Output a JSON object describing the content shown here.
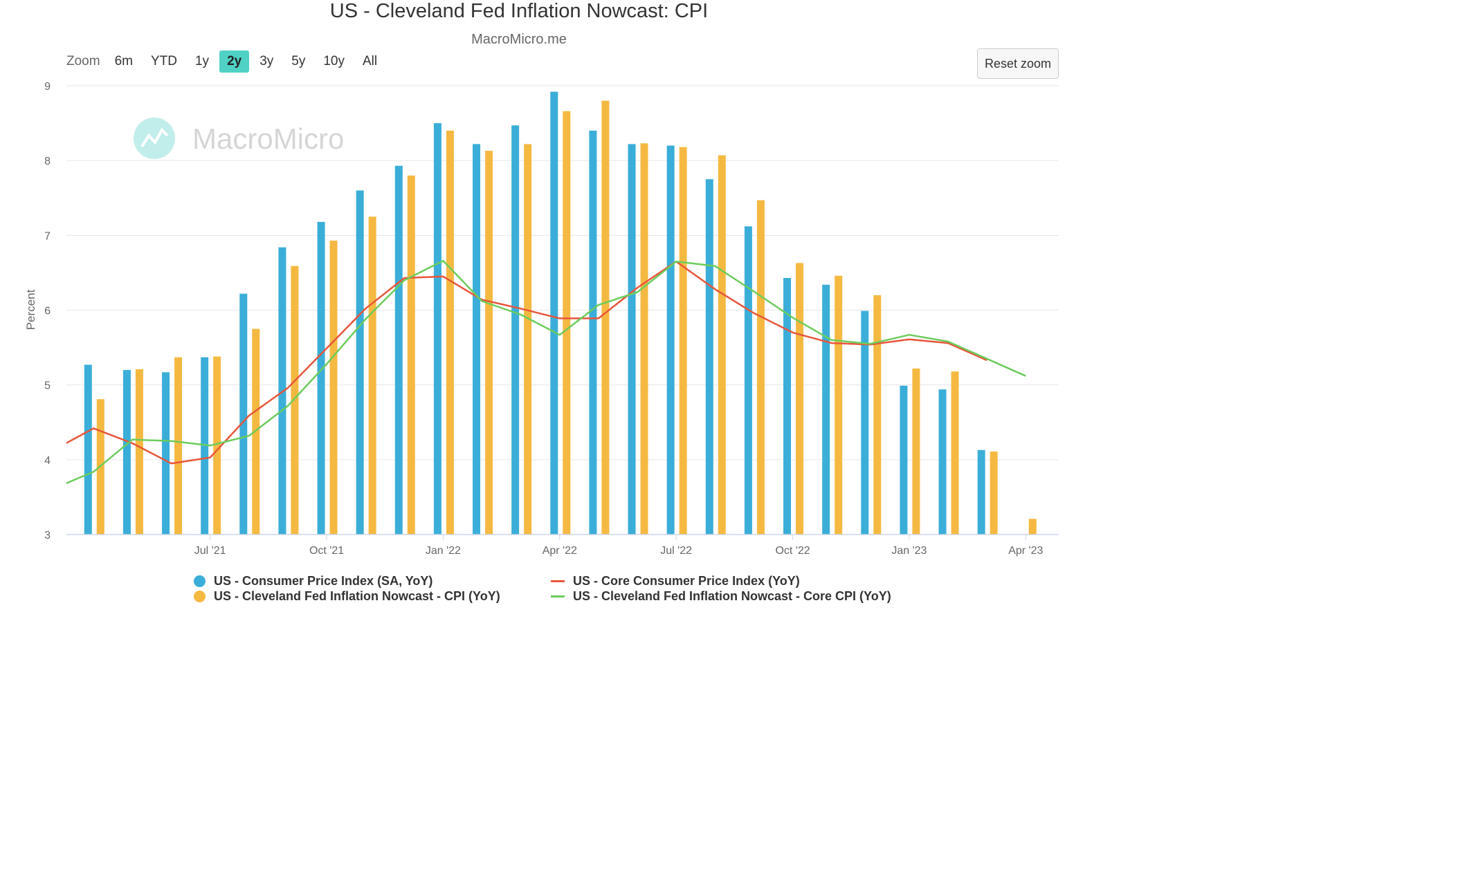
{
  "header": {
    "title": "US - Cleveland Fed Inflation Nowcast: CPI",
    "subtitle": "MacroMicro.me",
    "watermark": "MacroMicro"
  },
  "toolbar": {
    "zoom_label": "Zoom",
    "zoom_options": [
      "6m",
      "YTD",
      "1y",
      "2y",
      "3y",
      "5y",
      "10y",
      "All"
    ],
    "active_zoom": "2y",
    "reset_label": "Reset zoom"
  },
  "colors": {
    "cpi": "#3aaed8",
    "nowcast_cpi": "#f5b942",
    "core_cpi": "#e8553a",
    "nowcast_core": "#6ccc5c",
    "accent": "#4fd1c5"
  },
  "chart_data": {
    "type": "bar",
    "ylabel": "Percent",
    "ylim": [
      3,
      9
    ],
    "yticks": [
      "3",
      "4",
      "5",
      "6",
      "7",
      "8",
      "9"
    ],
    "x_tick_labels": [
      "Jul '21",
      "Oct '21",
      "Jan '22",
      "Apr '22",
      "Jul '22",
      "Oct '22",
      "Jan '23",
      "Apr '23"
    ],
    "x_tick_months": [
      5,
      8,
      11,
      14,
      17,
      20,
      23,
      26
    ],
    "months": [
      "2021-02",
      "2021-03",
      "2021-04",
      "2021-05",
      "2021-06",
      "2021-07",
      "2021-08",
      "2021-09",
      "2021-10",
      "2021-11",
      "2021-12",
      "2022-01",
      "2022-02",
      "2022-03",
      "2022-04",
      "2022-05",
      "2022-06",
      "2022-07",
      "2022-08",
      "2022-09",
      "2022-10",
      "2022-11",
      "2022-12",
      "2023-01",
      "2023-02",
      "2023-03",
      "2023-04",
      "2023-05",
      "2023-06"
    ],
    "grid": true,
    "legend_position": "bottom",
    "series": [
      {
        "name": "US - Consumer Price Index (SA, YoY)",
        "kind": "bar",
        "color": "#3aaed8",
        "values": [
          null,
          null,
          5.27,
          5.2,
          5.17,
          5.37,
          6.22,
          6.84,
          7.18,
          7.6,
          7.93,
          8.5,
          8.22,
          8.47,
          8.92,
          8.4,
          8.22,
          8.2,
          7.75,
          7.12,
          6.43,
          6.34,
          5.99,
          4.99,
          4.94,
          4.13,
          null,
          null,
          null
        ]
      },
      {
        "name": "US - Cleveland Fed Inflation Nowcast - CPI (YoY)",
        "kind": "bar",
        "color": "#f5b942",
        "values": [
          null,
          null,
          4.81,
          5.21,
          5.37,
          5.38,
          5.75,
          6.59,
          6.93,
          7.25,
          7.8,
          8.4,
          8.13,
          8.22,
          8.66,
          8.8,
          8.23,
          8.18,
          8.07,
          7.47,
          6.63,
          6.46,
          6.2,
          5.22,
          5.18,
          4.11,
          3.21,
          null,
          null
        ]
      },
      {
        "name": "US - Core Consumer Price Index (YoY)",
        "kind": "line",
        "color": "#e8553a",
        "values": [
          null,
          4.14,
          4.42,
          4.22,
          3.95,
          4.03,
          4.59,
          4.96,
          5.49,
          6.02,
          6.43,
          6.45,
          6.14,
          6.02,
          5.89,
          5.89,
          6.3,
          6.65,
          6.28,
          5.96,
          5.7,
          5.56,
          5.54,
          5.61,
          5.56,
          5.33,
          null,
          null,
          null
        ]
      },
      {
        "name": "US - Cleveland Fed Inflation Nowcast - Core CPI (YoY)",
        "kind": "line",
        "color": "#6ccc5c",
        "values": [
          null,
          3.62,
          3.84,
          4.27,
          4.25,
          4.19,
          4.32,
          4.72,
          5.28,
          5.88,
          6.4,
          6.66,
          6.12,
          5.94,
          5.67,
          6.07,
          6.24,
          6.65,
          6.59,
          6.25,
          5.9,
          5.6,
          5.55,
          5.67,
          5.58,
          5.35,
          5.12,
          null,
          null
        ]
      }
    ]
  }
}
